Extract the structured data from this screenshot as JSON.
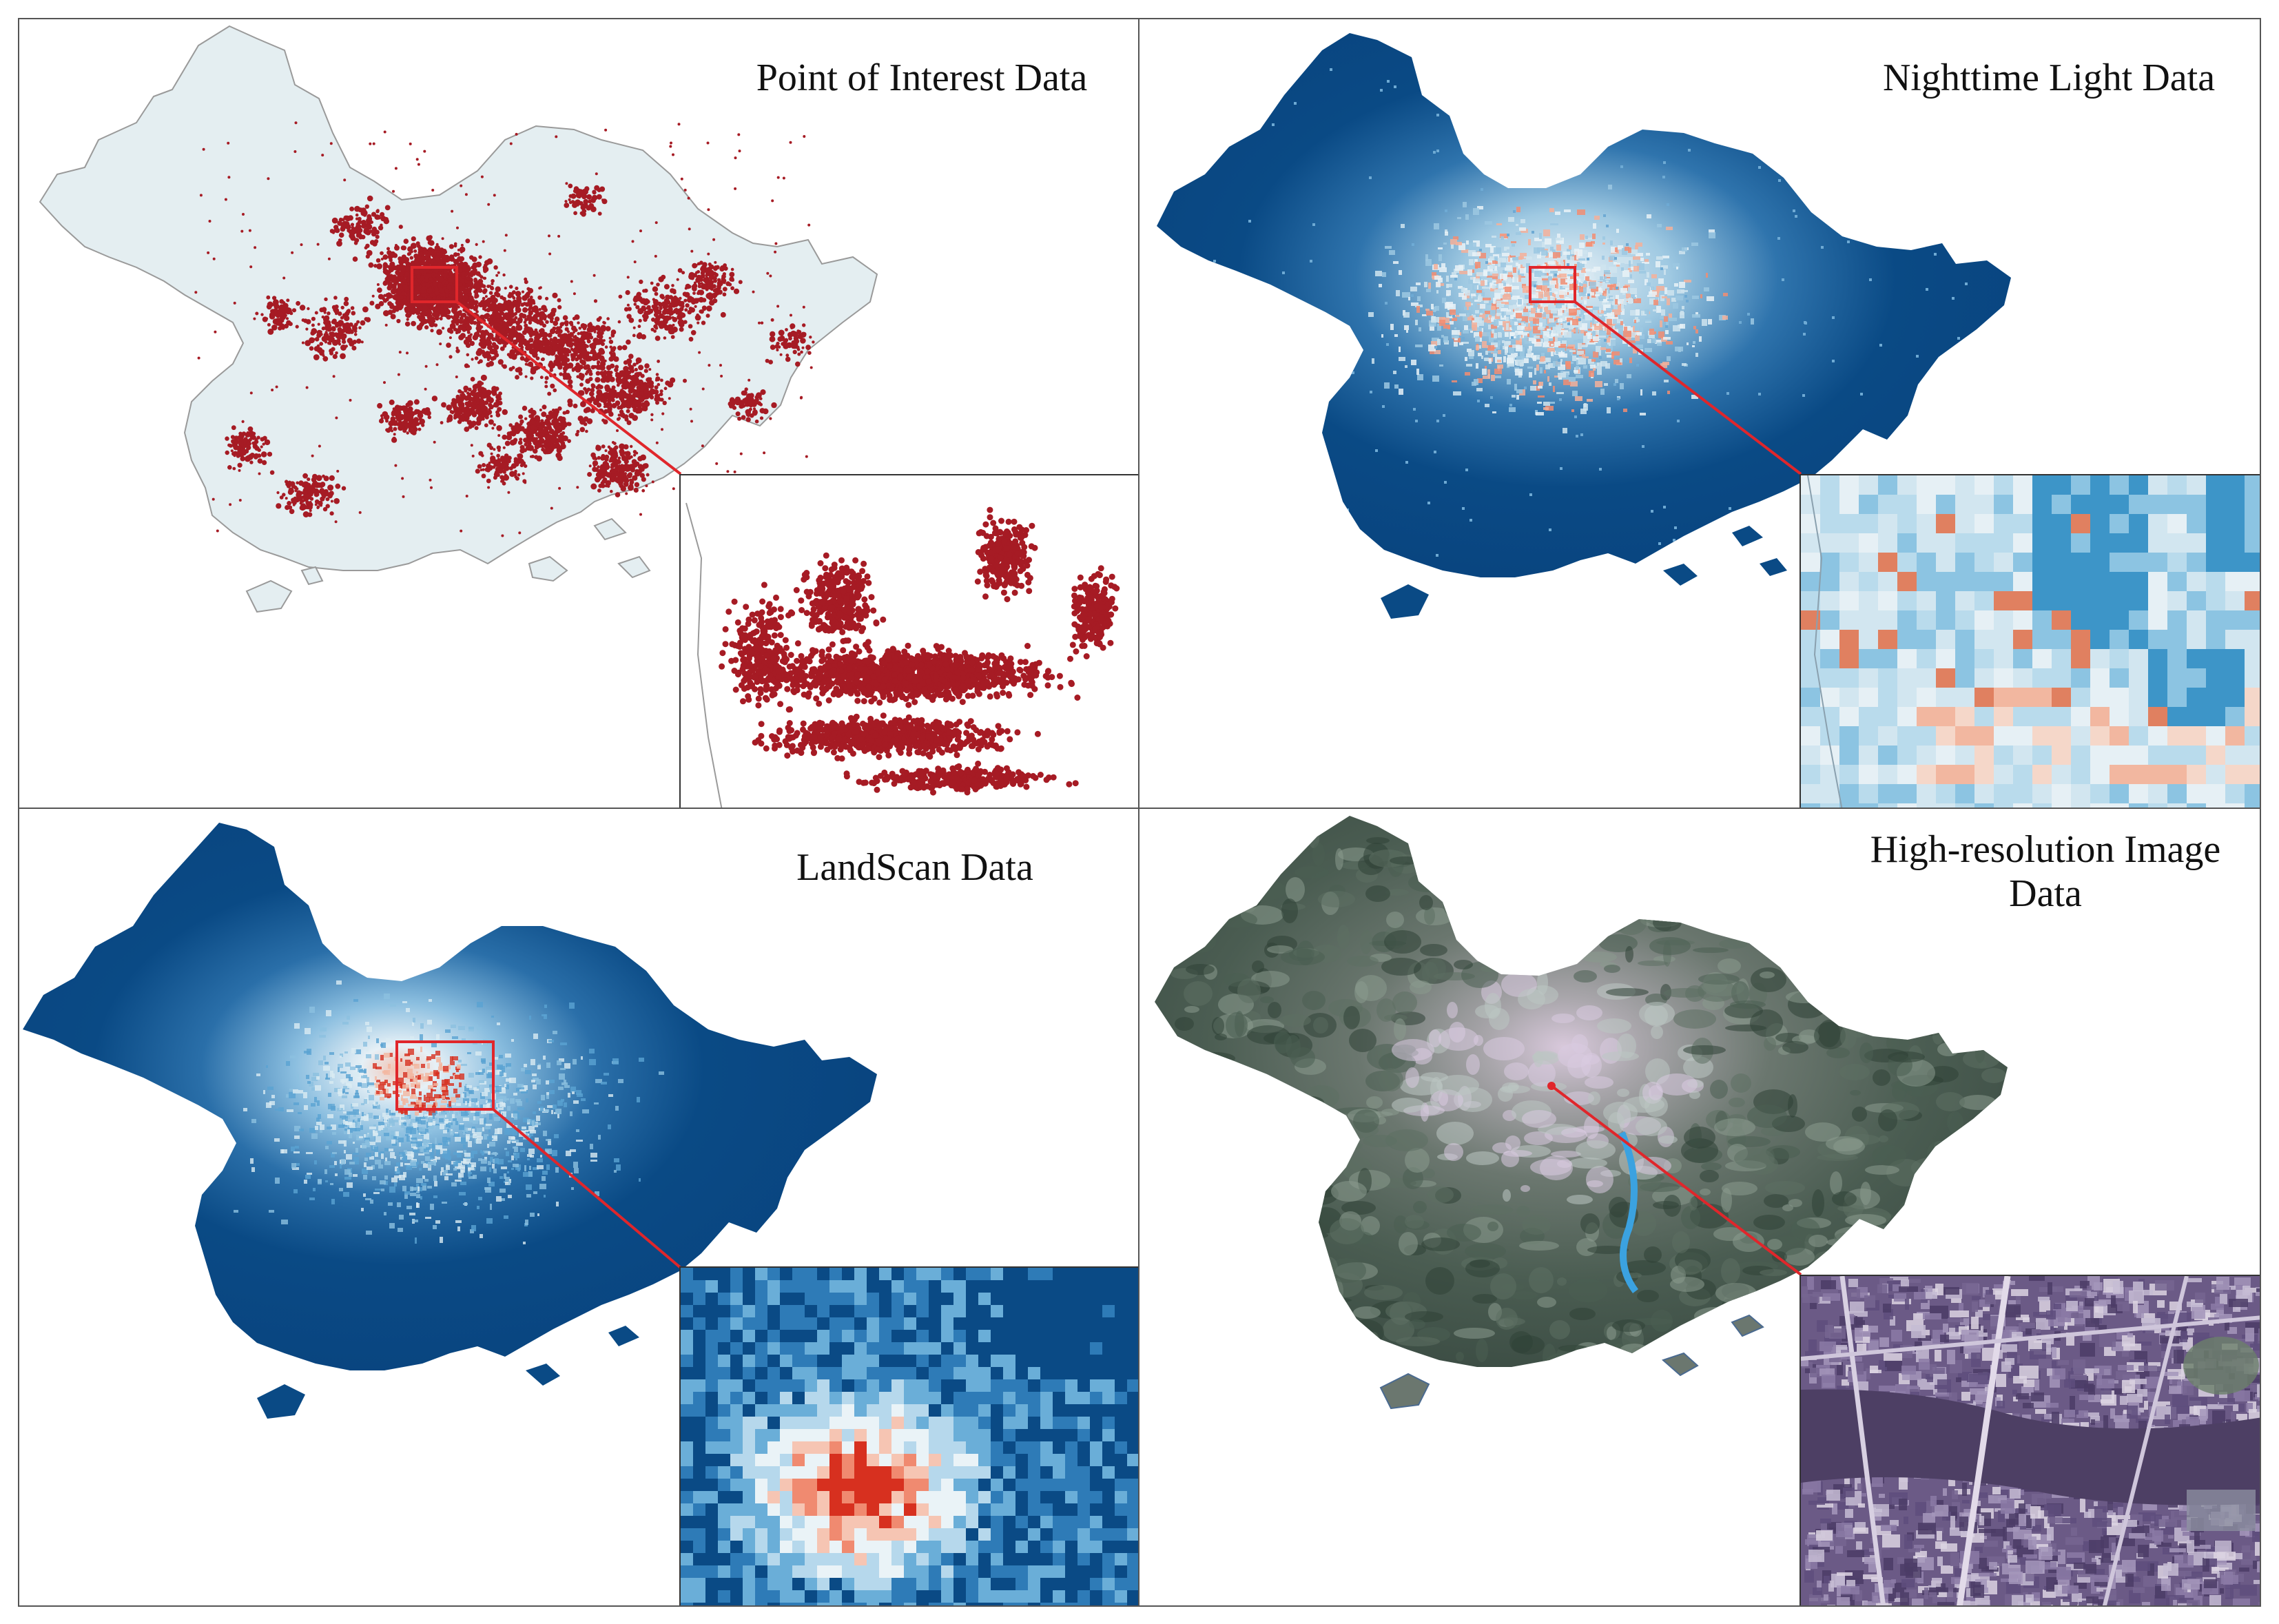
{
  "panels": {
    "poi": {
      "title": "Point of Interest Data",
      "colors": {
        "land": "#e4eef1",
        "outline": "#9a9a9a",
        "points": "#a61b24",
        "box": "#e0262b"
      }
    },
    "ntl": {
      "title": "Nighttime Light Data",
      "colors": {
        "base": "#0a4a85",
        "mid": "#4f95c7",
        "light": "#cfe4ef",
        "hot": "#f28d72",
        "box": "#e0262b"
      }
    },
    "landscan": {
      "title": "LandScan Data",
      "colors": {
        "base": "#0a4a85",
        "mid": "#5aa3d2",
        "light": "#d9ebf3",
        "hot": "#d7301f",
        "box": "#e0262b"
      }
    },
    "highres": {
      "title_line1": "High-resolution Image",
      "title_line2": "Data",
      "colors": {
        "forest": "#3f5448",
        "urban": "#c7bccd",
        "water": "#4d3f64",
        "box": "#e0262b"
      }
    }
  }
}
